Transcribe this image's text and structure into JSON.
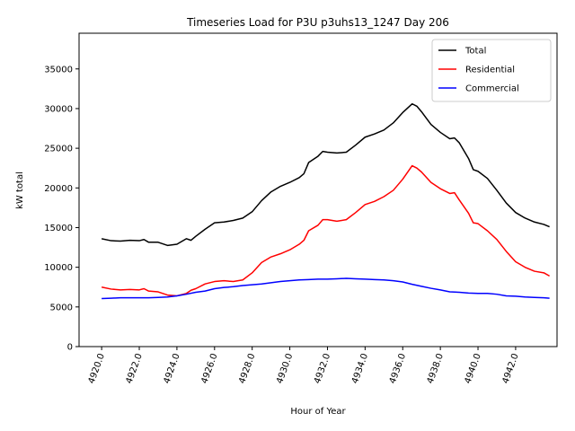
{
  "chart_data": {
    "type": "line",
    "title": "Timeseries Load for P3U p3uhs13_1247  Day 206",
    "xlabel": "Hour of Year",
    "ylabel": "kW total",
    "xlim": [
      4918.8,
      4944.2
    ],
    "ylim": [
      0,
      39500
    ],
    "grid": false,
    "legend_position": "top-right",
    "x_ticks": [
      4920,
      4922,
      4924,
      4926,
      4928,
      4930,
      4932,
      4934,
      4936,
      4938,
      4940,
      4942
    ],
    "x_tick_labels": [
      "4920.0",
      "4922.0",
      "4924.0",
      "4926.0",
      "4928.0",
      "4930.0",
      "4932.0",
      "4934.0",
      "4936.0",
      "4938.0",
      "4940.0",
      "4942.0"
    ],
    "y_ticks": [
      0,
      5000,
      10000,
      15000,
      20000,
      25000,
      30000,
      35000
    ],
    "y_tick_labels": [
      "0",
      "5000",
      "10000",
      "15000",
      "20000",
      "25000",
      "30000",
      "35000"
    ],
    "series": [
      {
        "name": "Total",
        "color": "#000000",
        "points": [
          [
            4920.0,
            13600
          ],
          [
            4920.5,
            13350
          ],
          [
            4921.0,
            13300
          ],
          [
            4921.5,
            13400
          ],
          [
            4922.0,
            13350
          ],
          [
            4922.25,
            13500
          ],
          [
            4922.5,
            13150
          ],
          [
            4923.0,
            13150
          ],
          [
            4923.5,
            12750
          ],
          [
            4924.0,
            12900
          ],
          [
            4924.5,
            13600
          ],
          [
            4924.75,
            13400
          ],
          [
            4925.0,
            13900
          ],
          [
            4925.5,
            14800
          ],
          [
            4926.0,
            15600
          ],
          [
            4926.5,
            15700
          ],
          [
            4927.0,
            15900
          ],
          [
            4927.5,
            16200
          ],
          [
            4928.0,
            17000
          ],
          [
            4928.5,
            18400
          ],
          [
            4929.0,
            19500
          ],
          [
            4929.5,
            20200
          ],
          [
            4930.0,
            20700
          ],
          [
            4930.5,
            21300
          ],
          [
            4930.75,
            21800
          ],
          [
            4931.0,
            23200
          ],
          [
            4931.5,
            24000
          ],
          [
            4931.75,
            24600
          ],
          [
            4932.0,
            24500
          ],
          [
            4932.5,
            24400
          ],
          [
            4933.0,
            24500
          ],
          [
            4933.5,
            25400
          ],
          [
            4934.0,
            26400
          ],
          [
            4934.5,
            26800
          ],
          [
            4935.0,
            27300
          ],
          [
            4935.5,
            28200
          ],
          [
            4936.0,
            29500
          ],
          [
            4936.5,
            30600
          ],
          [
            4936.75,
            30300
          ],
          [
            4937.0,
            29600
          ],
          [
            4937.5,
            28000
          ],
          [
            4938.0,
            27000
          ],
          [
            4938.5,
            26200
          ],
          [
            4938.75,
            26300
          ],
          [
            4939.0,
            25700
          ],
          [
            4939.5,
            23700
          ],
          [
            4939.75,
            22300
          ],
          [
            4940.0,
            22100
          ],
          [
            4940.5,
            21200
          ],
          [
            4941.0,
            19700
          ],
          [
            4941.5,
            18100
          ],
          [
            4942.0,
            16900
          ],
          [
            4942.5,
            16200
          ],
          [
            4943.0,
            15700
          ],
          [
            4943.5,
            15400
          ],
          [
            4943.8,
            15100
          ]
        ]
      },
      {
        "name": "Residential",
        "color": "#ff0000",
        "points": [
          [
            4920.0,
            7500
          ],
          [
            4920.5,
            7250
          ],
          [
            4921.0,
            7150
          ],
          [
            4921.5,
            7200
          ],
          [
            4922.0,
            7150
          ],
          [
            4922.25,
            7300
          ],
          [
            4922.5,
            7000
          ],
          [
            4923.0,
            6900
          ],
          [
            4923.5,
            6500
          ],
          [
            4924.0,
            6400
          ],
          [
            4924.5,
            6700
          ],
          [
            4924.75,
            7100
          ],
          [
            4925.0,
            7300
          ],
          [
            4925.5,
            7900
          ],
          [
            4926.0,
            8200
          ],
          [
            4926.5,
            8300
          ],
          [
            4927.0,
            8200
          ],
          [
            4927.5,
            8400
          ],
          [
            4928.0,
            9300
          ],
          [
            4928.5,
            10600
          ],
          [
            4929.0,
            11300
          ],
          [
            4929.5,
            11700
          ],
          [
            4930.0,
            12200
          ],
          [
            4930.5,
            12900
          ],
          [
            4930.75,
            13400
          ],
          [
            4931.0,
            14600
          ],
          [
            4931.5,
            15300
          ],
          [
            4931.75,
            16000
          ],
          [
            4932.0,
            16000
          ],
          [
            4932.5,
            15800
          ],
          [
            4933.0,
            16000
          ],
          [
            4933.5,
            16900
          ],
          [
            4934.0,
            17900
          ],
          [
            4934.5,
            18300
          ],
          [
            4935.0,
            18900
          ],
          [
            4935.5,
            19700
          ],
          [
            4936.0,
            21100
          ],
          [
            4936.5,
            22800
          ],
          [
            4936.75,
            22500
          ],
          [
            4937.0,
            22000
          ],
          [
            4937.5,
            20700
          ],
          [
            4938.0,
            19900
          ],
          [
            4938.5,
            19300
          ],
          [
            4938.75,
            19400
          ],
          [
            4939.0,
            18500
          ],
          [
            4939.5,
            16800
          ],
          [
            4939.75,
            15600
          ],
          [
            4940.0,
            15500
          ],
          [
            4940.5,
            14600
          ],
          [
            4941.0,
            13500
          ],
          [
            4941.5,
            12000
          ],
          [
            4942.0,
            10700
          ],
          [
            4942.5,
            10000
          ],
          [
            4943.0,
            9500
          ],
          [
            4943.5,
            9300
          ],
          [
            4943.8,
            8900
          ]
        ]
      },
      {
        "name": "Commercial",
        "color": "#0000ff",
        "points": [
          [
            4920.0,
            6050
          ],
          [
            4920.5,
            6100
          ],
          [
            4921.0,
            6150
          ],
          [
            4921.5,
            6150
          ],
          [
            4922.0,
            6150
          ],
          [
            4922.5,
            6150
          ],
          [
            4923.0,
            6200
          ],
          [
            4923.5,
            6250
          ],
          [
            4924.0,
            6400
          ],
          [
            4924.5,
            6600
          ],
          [
            4925.0,
            6850
          ],
          [
            4925.5,
            7000
          ],
          [
            4926.0,
            7300
          ],
          [
            4926.5,
            7450
          ],
          [
            4927.0,
            7550
          ],
          [
            4927.5,
            7700
          ],
          [
            4928.0,
            7800
          ],
          [
            4928.5,
            7900
          ],
          [
            4929.0,
            8050
          ],
          [
            4929.5,
            8200
          ],
          [
            4930.0,
            8300
          ],
          [
            4930.5,
            8400
          ],
          [
            4931.0,
            8450
          ],
          [
            4931.5,
            8500
          ],
          [
            4932.0,
            8500
          ],
          [
            4932.5,
            8550
          ],
          [
            4933.0,
            8600
          ],
          [
            4933.5,
            8550
          ],
          [
            4934.0,
            8500
          ],
          [
            4934.5,
            8450
          ],
          [
            4935.0,
            8400
          ],
          [
            4935.5,
            8300
          ],
          [
            4936.0,
            8150
          ],
          [
            4936.5,
            7850
          ],
          [
            4937.0,
            7600
          ],
          [
            4937.5,
            7350
          ],
          [
            4938.0,
            7150
          ],
          [
            4938.5,
            6900
          ],
          [
            4939.0,
            6850
          ],
          [
            4939.5,
            6750
          ],
          [
            4940.0,
            6700
          ],
          [
            4940.5,
            6700
          ],
          [
            4941.0,
            6600
          ],
          [
            4941.5,
            6400
          ],
          [
            4942.0,
            6350
          ],
          [
            4942.5,
            6250
          ],
          [
            4943.0,
            6200
          ],
          [
            4943.5,
            6150
          ],
          [
            4943.8,
            6100
          ]
        ]
      }
    ]
  }
}
